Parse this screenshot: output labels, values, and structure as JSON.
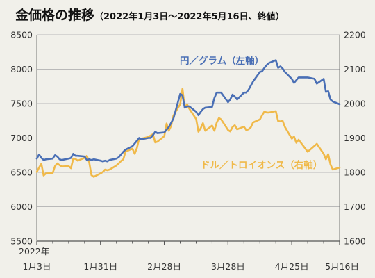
{
  "chart_data": {
    "type": "line",
    "title": "金価格の推移",
    "subtitle": "（2022年1月3日～2022年5月16日、終値）",
    "x_ticks": [
      {
        "date": "2022-01-03",
        "line1": "2022年",
        "line2": "1月3日"
      },
      {
        "date": "2022-01-31",
        "line1": "",
        "line2": "1月31日"
      },
      {
        "date": "2022-02-28",
        "line1": "",
        "line2": "2月28日"
      },
      {
        "date": "2022-03-28",
        "line1": "",
        "line2": "3月28日"
      },
      {
        "date": "2022-04-25",
        "line1": "",
        "line2": "4月25日"
      },
      {
        "date": "2022-05-16",
        "line1": "",
        "line2": "5月16日"
      }
    ],
    "xlim": [
      "2022-01-03",
      "2022-05-16"
    ],
    "y_left": {
      "ylim": [
        5500,
        8500
      ],
      "ticks": [
        5500,
        6000,
        6500,
        7000,
        7500,
        8000,
        8500
      ]
    },
    "y_right": {
      "ylim": [
        1600,
        2200
      ],
      "ticks": [
        1600,
        1700,
        1800,
        1900,
        2000,
        2100,
        2200
      ]
    },
    "grid": true,
    "series": [
      {
        "name": "円／グラム（左軸）",
        "axis": "left",
        "color": "#4a6fb5",
        "points": [
          [
            "2022-01-03",
            6700
          ],
          [
            "2022-01-04",
            6760
          ],
          [
            "2022-01-05",
            6710
          ],
          [
            "2022-01-06",
            6680
          ],
          [
            "2022-01-07",
            6690
          ],
          [
            "2022-01-10",
            6700
          ],
          [
            "2022-01-11",
            6750
          ],
          [
            "2022-01-12",
            6730
          ],
          [
            "2022-01-13",
            6690
          ],
          [
            "2022-01-14",
            6680
          ],
          [
            "2022-01-17",
            6700
          ],
          [
            "2022-01-18",
            6710
          ],
          [
            "2022-01-19",
            6770
          ],
          [
            "2022-01-20",
            6740
          ],
          [
            "2022-01-21",
            6740
          ],
          [
            "2022-01-24",
            6730
          ],
          [
            "2022-01-25",
            6680
          ],
          [
            "2022-01-26",
            6690
          ],
          [
            "2022-01-27",
            6680
          ],
          [
            "2022-01-28",
            6690
          ],
          [
            "2022-01-31",
            6670
          ],
          [
            "2022-02-01",
            6660
          ],
          [
            "2022-02-02",
            6670
          ],
          [
            "2022-02-03",
            6660
          ],
          [
            "2022-02-04",
            6680
          ],
          [
            "2022-02-07",
            6700
          ],
          [
            "2022-02-08",
            6720
          ],
          [
            "2022-02-09",
            6760
          ],
          [
            "2022-02-10",
            6800
          ],
          [
            "2022-02-11",
            6830
          ],
          [
            "2022-02-14",
            6880
          ],
          [
            "2022-02-15",
            6920
          ],
          [
            "2022-02-16",
            6960
          ],
          [
            "2022-02-17",
            7000
          ],
          [
            "2022-02-18",
            6980
          ],
          [
            "2022-02-21",
            7000
          ],
          [
            "2022-02-22",
            7000
          ],
          [
            "2022-02-23",
            7040
          ],
          [
            "2022-02-24",
            7090
          ],
          [
            "2022-02-25",
            7070
          ],
          [
            "2022-02-28",
            7080
          ],
          [
            "2022-03-01",
            7120
          ],
          [
            "2022-03-02",
            7160
          ],
          [
            "2022-03-03",
            7220
          ],
          [
            "2022-03-04",
            7280
          ],
          [
            "2022-03-07",
            7640
          ],
          [
            "2022-03-08",
            7620
          ],
          [
            "2022-03-09",
            7440
          ],
          [
            "2022-03-10",
            7460
          ],
          [
            "2022-03-11",
            7460
          ],
          [
            "2022-03-14",
            7380
          ],
          [
            "2022-03-15",
            7330
          ],
          [
            "2022-03-16",
            7380
          ],
          [
            "2022-03-17",
            7420
          ],
          [
            "2022-03-18",
            7440
          ],
          [
            "2022-03-21",
            7450
          ],
          [
            "2022-03-22",
            7580
          ],
          [
            "2022-03-23",
            7660
          ],
          [
            "2022-03-24",
            7660
          ],
          [
            "2022-03-25",
            7660
          ],
          [
            "2022-03-28",
            7520
          ],
          [
            "2022-03-29",
            7560
          ],
          [
            "2022-03-30",
            7630
          ],
          [
            "2022-03-31",
            7600
          ],
          [
            "2022-04-01",
            7560
          ],
          [
            "2022-04-04",
            7660
          ],
          [
            "2022-04-05",
            7660
          ],
          [
            "2022-04-06",
            7700
          ],
          [
            "2022-04-07",
            7760
          ],
          [
            "2022-04-08",
            7820
          ],
          [
            "2022-04-11",
            7960
          ],
          [
            "2022-04-12",
            7970
          ],
          [
            "2022-04-13",
            8020
          ],
          [
            "2022-04-14",
            8060
          ],
          [
            "2022-04-15",
            8090
          ],
          [
            "2022-04-18",
            8130
          ],
          [
            "2022-04-19",
            8020
          ],
          [
            "2022-04-20",
            8040
          ],
          [
            "2022-04-21",
            8010
          ],
          [
            "2022-04-22",
            7960
          ],
          [
            "2022-04-25",
            7860
          ],
          [
            "2022-04-26",
            7800
          ],
          [
            "2022-04-27",
            7840
          ],
          [
            "2022-04-28",
            7880
          ],
          [
            "2022-05-02",
            7880
          ],
          [
            "2022-05-05",
            7860
          ],
          [
            "2022-05-06",
            7790
          ],
          [
            "2022-05-09",
            7860
          ],
          [
            "2022-05-10",
            7670
          ],
          [
            "2022-05-11",
            7680
          ],
          [
            "2022-05-12",
            7560
          ],
          [
            "2022-05-13",
            7530
          ],
          [
            "2022-05-16",
            7490
          ]
        ]
      },
      {
        "name": "ドル／トロイオンス（右軸）",
        "axis": "right",
        "color": "#f0b949",
        "points": [
          [
            "2022-01-03",
            1801
          ],
          [
            "2022-01-04",
            1814
          ],
          [
            "2022-01-05",
            1825
          ],
          [
            "2022-01-06",
            1791
          ],
          [
            "2022-01-07",
            1797
          ],
          [
            "2022-01-10",
            1798
          ],
          [
            "2022-01-11",
            1818
          ],
          [
            "2022-01-12",
            1826
          ],
          [
            "2022-01-13",
            1821
          ],
          [
            "2022-01-14",
            1817
          ],
          [
            "2022-01-17",
            1818
          ],
          [
            "2022-01-18",
            1812
          ],
          [
            "2022-01-19",
            1840
          ],
          [
            "2022-01-20",
            1839
          ],
          [
            "2022-01-21",
            1834
          ],
          [
            "2022-01-24",
            1842
          ],
          [
            "2022-01-25",
            1848
          ],
          [
            "2022-01-26",
            1830
          ],
          [
            "2022-01-27",
            1792
          ],
          [
            "2022-01-28",
            1787
          ],
          [
            "2022-01-31",
            1797
          ],
          [
            "2022-02-01",
            1801
          ],
          [
            "2022-02-02",
            1808
          ],
          [
            "2022-02-03",
            1806
          ],
          [
            "2022-02-04",
            1808
          ],
          [
            "2022-02-07",
            1820
          ],
          [
            "2022-02-08",
            1826
          ],
          [
            "2022-02-09",
            1833
          ],
          [
            "2022-02-10",
            1838
          ],
          [
            "2022-02-11",
            1860
          ],
          [
            "2022-02-14",
            1869
          ],
          [
            "2022-02-15",
            1854
          ],
          [
            "2022-02-16",
            1871
          ],
          [
            "2022-02-17",
            1899
          ],
          [
            "2022-02-18",
            1898
          ],
          [
            "2022-02-21",
            1903
          ],
          [
            "2022-02-22",
            1907
          ],
          [
            "2022-02-23",
            1911
          ],
          [
            "2022-02-24",
            1887
          ],
          [
            "2022-02-25",
            1889
          ],
          [
            "2022-02-28",
            1905
          ],
          [
            "2022-03-01",
            1942
          ],
          [
            "2022-03-02",
            1921
          ],
          [
            "2022-03-03",
            1935
          ],
          [
            "2022-03-04",
            1965
          ],
          [
            "2022-03-07",
            1998
          ],
          [
            "2022-03-08",
            2043
          ],
          [
            "2022-03-09",
            1988
          ],
          [
            "2022-03-10",
            1998
          ],
          [
            "2022-03-11",
            1985
          ],
          [
            "2022-03-14",
            1955
          ],
          [
            "2022-03-15",
            1918
          ],
          [
            "2022-03-16",
            1928
          ],
          [
            "2022-03-17",
            1943
          ],
          [
            "2022-03-18",
            1921
          ],
          [
            "2022-03-21",
            1936
          ],
          [
            "2022-03-22",
            1921
          ],
          [
            "2022-03-23",
            1944
          ],
          [
            "2022-03-24",
            1958
          ],
          [
            "2022-03-25",
            1954
          ],
          [
            "2022-03-28",
            1923
          ],
          [
            "2022-03-29",
            1919
          ],
          [
            "2022-03-30",
            1932
          ],
          [
            "2022-03-31",
            1937
          ],
          [
            "2022-04-01",
            1925
          ],
          [
            "2022-04-04",
            1933
          ],
          [
            "2022-04-05",
            1923
          ],
          [
            "2022-04-06",
            1925
          ],
          [
            "2022-04-07",
            1931
          ],
          [
            "2022-04-08",
            1945
          ],
          [
            "2022-04-11",
            1954
          ],
          [
            "2022-04-12",
            1966
          ],
          [
            "2022-04-13",
            1977
          ],
          [
            "2022-04-14",
            1974
          ],
          [
            "2022-04-15",
            1974
          ],
          [
            "2022-04-18",
            1978
          ],
          [
            "2022-04-19",
            1949
          ],
          [
            "2022-04-20",
            1948
          ],
          [
            "2022-04-21",
            1950
          ],
          [
            "2022-04-22",
            1932
          ],
          [
            "2022-04-25",
            1898
          ],
          [
            "2022-04-26",
            1904
          ],
          [
            "2022-04-27",
            1886
          ],
          [
            "2022-04-28",
            1895
          ],
          [
            "2022-05-02",
            1860
          ],
          [
            "2022-05-05",
            1877
          ],
          [
            "2022-05-06",
            1883
          ],
          [
            "2022-05-09",
            1854
          ],
          [
            "2022-05-10",
            1838
          ],
          [
            "2022-05-11",
            1853
          ],
          [
            "2022-05-12",
            1823
          ],
          [
            "2022-05-13",
            1808
          ],
          [
            "2022-05-16",
            1814
          ]
        ]
      }
    ]
  }
}
